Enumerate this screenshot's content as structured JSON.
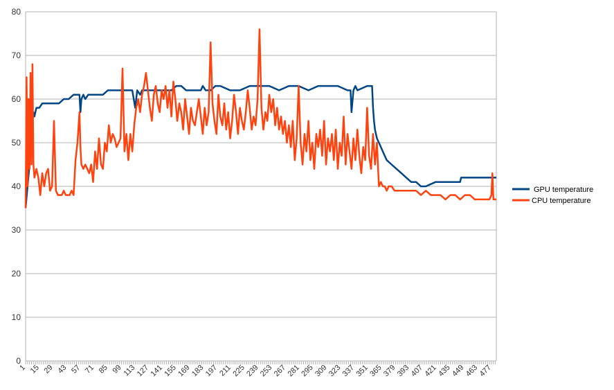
{
  "chart_data": {
    "type": "line",
    "title": "",
    "xlabel": "",
    "ylabel": "",
    "xlim": [
      1,
      482
    ],
    "ylim": [
      0,
      80
    ],
    "y_ticks": [
      0,
      10,
      20,
      30,
      40,
      50,
      60,
      70,
      80
    ],
    "x_tick_labels": [
      1,
      15,
      29,
      43,
      57,
      71,
      85,
      99,
      113,
      127,
      141,
      155,
      169,
      183,
      197,
      211,
      225,
      239,
      253,
      267,
      281,
      295,
      309,
      323,
      337,
      351,
      365,
      379,
      393,
      407,
      421,
      435,
      449,
      463,
      477
    ],
    "grid": "horizontal",
    "legend_position": "right",
    "series": [
      {
        "name": "GPU temperature",
        "color": "#004586",
        "x": [
          1,
          3,
          5,
          6,
          8,
          9,
          10,
          12,
          15,
          18,
          20,
          25,
          30,
          35,
          40,
          45,
          50,
          55,
          56,
          57,
          58,
          60,
          62,
          65,
          70,
          80,
          85,
          90,
          100,
          110,
          113,
          115,
          118,
          120,
          125,
          130,
          140,
          150,
          155,
          160,
          165,
          170,
          175,
          180,
          182,
          185,
          190,
          195,
          200,
          210,
          220,
          230,
          240,
          250,
          260,
          270,
          280,
          290,
          300,
          310,
          320,
          330,
          333,
          334,
          336,
          338,
          340,
          350,
          355,
          356,
          357,
          358,
          359,
          360,
          362,
          364,
          366,
          368,
          370,
          375,
          380,
          385,
          390,
          395,
          400,
          405,
          410,
          420,
          430,
          440,
          445,
          446,
          450,
          460,
          470,
          482
        ],
        "values": [
          35,
          40,
          45,
          52,
          55,
          57,
          56,
          58,
          58,
          59,
          59,
          59,
          59,
          59,
          60,
          60,
          61,
          61,
          61,
          57,
          60,
          61,
          60,
          61,
          61,
          61,
          62,
          62,
          62,
          62,
          58,
          62,
          61,
          62,
          62,
          62,
          62,
          62,
          63,
          63,
          62,
          62,
          62,
          62,
          63,
          62,
          62,
          63,
          63,
          62,
          62,
          63,
          63,
          63,
          62,
          63,
          63,
          62,
          63,
          63,
          63,
          62,
          62,
          57,
          62,
          63,
          62,
          63,
          63,
          58,
          55,
          53,
          52,
          51,
          50,
          49,
          48,
          47,
          46,
          45,
          44,
          43,
          42,
          41,
          41,
          40,
          40,
          41,
          41,
          41,
          41,
          42,
          42,
          42,
          42,
          42
        ]
      },
      {
        "name": "CPU temperature",
        "color": "#ff420e",
        "x": [
          1,
          2,
          3,
          4,
          5,
          6,
          7,
          8,
          9,
          10,
          12,
          14,
          16,
          18,
          20,
          22,
          24,
          26,
          28,
          30,
          32,
          34,
          36,
          38,
          40,
          42,
          44,
          46,
          48,
          50,
          52,
          54,
          56,
          57,
          58,
          60,
          62,
          64,
          66,
          68,
          70,
          72,
          74,
          76,
          78,
          80,
          82,
          84,
          86,
          88,
          90,
          92,
          94,
          96,
          98,
          100,
          102,
          104,
          106,
          108,
          110,
          112,
          114,
          116,
          118,
          120,
          122,
          124,
          126,
          128,
          130,
          132,
          134,
          136,
          138,
          140,
          142,
          144,
          146,
          148,
          150,
          152,
          154,
          156,
          158,
          160,
          162,
          164,
          166,
          168,
          170,
          172,
          174,
          176,
          178,
          180,
          182,
          184,
          186,
          188,
          190,
          192,
          194,
          196,
          198,
          200,
          202,
          204,
          206,
          208,
          210,
          212,
          214,
          216,
          218,
          220,
          222,
          224,
          226,
          228,
          230,
          232,
          234,
          236,
          238,
          240,
          242,
          244,
          246,
          248,
          250,
          252,
          254,
          256,
          258,
          260,
          262,
          264,
          266,
          268,
          270,
          272,
          274,
          276,
          278,
          280,
          282,
          284,
          286,
          288,
          290,
          292,
          294,
          296,
          298,
          300,
          302,
          304,
          306,
          308,
          310,
          312,
          314,
          316,
          318,
          320,
          322,
          324,
          326,
          328,
          330,
          332,
          334,
          336,
          338,
          340,
          342,
          344,
          346,
          348,
          350,
          352,
          354,
          356,
          358,
          360,
          362,
          364,
          366,
          368,
          370,
          372,
          375,
          378,
          380,
          385,
          390,
          395,
          400,
          405,
          410,
          415,
          420,
          425,
          430,
          435,
          440,
          445,
          450,
          455,
          460,
          465,
          470,
          475,
          477,
          478,
          479,
          480,
          482
        ],
        "values": [
          35,
          65,
          40,
          60,
          44,
          66,
          45,
          68,
          45,
          42,
          44,
          42,
          38,
          43,
          40,
          43,
          44,
          39,
          40,
          55,
          39,
          38,
          38,
          38,
          39,
          38,
          38,
          38,
          39,
          38,
          46,
          50,
          57,
          49,
          45,
          44,
          45,
          44,
          43,
          45,
          41,
          48,
          44,
          51,
          45,
          44,
          50,
          48,
          54,
          50,
          52,
          51,
          49,
          50,
          51,
          67,
          48,
          52,
          46,
          52,
          48,
          54,
          58,
          60,
          57,
          61,
          63,
          66,
          62,
          58,
          55,
          61,
          63,
          59,
          57,
          62,
          60,
          63,
          58,
          62,
          56,
          64,
          60,
          55,
          59,
          57,
          53,
          60,
          56,
          52,
          58,
          55,
          54,
          57,
          60,
          56,
          52,
          58,
          54,
          57,
          73,
          59,
          55,
          52,
          61,
          56,
          54,
          59,
          53,
          57,
          51,
          55,
          61,
          57,
          52,
          58,
          55,
          53,
          57,
          62,
          58,
          53,
          56,
          54,
          60,
          76,
          58,
          53,
          57,
          55,
          61,
          57,
          60,
          54,
          58,
          53,
          56,
          52,
          55,
          50,
          54,
          49,
          55,
          46,
          51,
          63,
          50,
          45,
          52,
          48,
          55,
          46,
          50,
          44,
          52,
          49,
          53,
          47,
          55,
          45,
          51,
          48,
          52,
          46,
          53,
          44,
          50,
          47,
          56,
          45,
          52,
          48,
          44,
          51,
          46,
          53,
          47,
          43,
          49,
          46,
          58,
          47,
          44,
          52,
          45,
          50,
          40,
          41,
          40,
          40,
          39,
          40,
          40,
          39,
          39,
          39,
          39,
          39,
          39,
          38,
          39,
          38,
          38,
          38,
          37,
          38,
          38,
          37,
          38,
          38,
          37,
          37,
          37,
          37,
          38,
          43,
          37,
          37,
          37
        ]
      }
    ]
  }
}
